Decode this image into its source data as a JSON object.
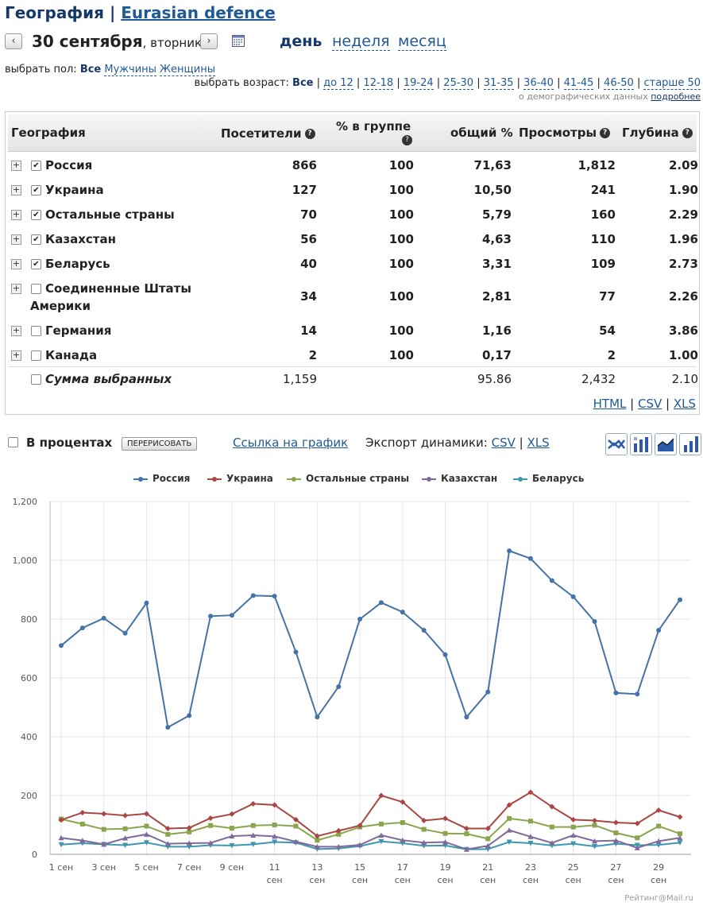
{
  "header": {
    "title": "География",
    "sep": "|",
    "site": "Eurasian defence"
  },
  "datebar": {
    "prev": "‹",
    "next": "›",
    "date": "30 сентября",
    "weekday": ", вторник",
    "periods": [
      "день",
      "неделя",
      "месяц"
    ]
  },
  "gender": {
    "label": "выбрать пол:",
    "options": [
      "Все",
      "Мужчины",
      "Женщины"
    ]
  },
  "age": {
    "label": "выбрать возраст:",
    "options": [
      "Все",
      "до 12",
      "12-18",
      "19-24",
      "25-30",
      "31-35",
      "36-40",
      "41-45",
      "46-50",
      "старше 50"
    ]
  },
  "demo": {
    "text": "о демографических данных",
    "link": "подробнее"
  },
  "table": {
    "headers": {
      "geo": "География",
      "visitors": "Посетители",
      "pct_group": "% в группе",
      "pct_total": "общий %",
      "views": "Просмотры",
      "depth": "Глубина"
    },
    "rows": [
      {
        "name": "Россия",
        "checked": true,
        "visitors": "866",
        "pct_group": "100",
        "pct_total": "71,63",
        "views": "1,812",
        "depth": "2.09"
      },
      {
        "name": "Украина",
        "checked": true,
        "visitors": "127",
        "pct_group": "100",
        "pct_total": "10,50",
        "views": "241",
        "depth": "1.90"
      },
      {
        "name": "Остальные страны",
        "checked": true,
        "visitors": "70",
        "pct_group": "100",
        "pct_total": "5,79",
        "views": "160",
        "depth": "2.29"
      },
      {
        "name": "Казахстан",
        "checked": true,
        "visitors": "56",
        "pct_group": "100",
        "pct_total": "4,63",
        "views": "110",
        "depth": "1.96"
      },
      {
        "name": "Беларусь",
        "checked": true,
        "visitors": "40",
        "pct_group": "100",
        "pct_total": "3,31",
        "views": "109",
        "depth": "2.73"
      },
      {
        "name": "Соединенные Штаты Америки",
        "checked": false,
        "visitors": "34",
        "pct_group": "100",
        "pct_total": "2,81",
        "views": "77",
        "depth": "2.26"
      },
      {
        "name": "Германия",
        "checked": false,
        "visitors": "14",
        "pct_group": "100",
        "pct_total": "1,16",
        "views": "54",
        "depth": "3.86"
      },
      {
        "name": "Канада",
        "checked": false,
        "visitors": "2",
        "pct_group": "100",
        "pct_total": "0,17",
        "views": "2",
        "depth": "1.00"
      }
    ],
    "summary": {
      "name": "Сумма выбранных",
      "visitors": "1,159",
      "pct_total": "95.86",
      "views": "2,432",
      "depth": "2.10"
    },
    "export": [
      "HTML",
      "CSV",
      "XLS"
    ]
  },
  "toolbar": {
    "percent_label": "В процентах",
    "redraw": "ПЕРЕРИСОВАТЬ",
    "chart_link": "Ссылка на график",
    "export_label": "Экспорт динамики:",
    "export_csv": "CSV",
    "export_xls": "XLS",
    "icons": [
      "line-cross-icon",
      "bar-value-icon",
      "area-chart-icon",
      "bar-chart-icon"
    ]
  },
  "chart_data": {
    "type": "line",
    "x": [
      1,
      2,
      3,
      4,
      5,
      6,
      7,
      8,
      9,
      10,
      11,
      12,
      13,
      14,
      15,
      16,
      17,
      18,
      19,
      20,
      21,
      22,
      23,
      24,
      25,
      26,
      27,
      28,
      29,
      30
    ],
    "x_tick_labels": [
      "1 сен",
      "3 сен",
      "5 сен",
      "7 сен",
      "9 сен",
      "11 сен",
      "13 сен",
      "15 сен",
      "17 сен",
      "19 сен",
      "21 сен",
      "23 сен",
      "25 сен",
      "27 сен",
      "29 сен"
    ],
    "ylim": [
      0,
      1200
    ],
    "y_ticks": [
      0,
      200,
      400,
      600,
      800,
      1000,
      1200
    ],
    "y_tick_labels": [
      "0",
      "200",
      "400",
      "600",
      "800",
      "1,000",
      "1,200"
    ],
    "grid": true,
    "legend": "top",
    "series": [
      {
        "name": "Россия",
        "color": "#4572a7",
        "marker": "circle",
        "values": [
          710,
          770,
          803,
          752,
          855,
          432,
          472,
          810,
          813,
          880,
          878,
          688,
          467,
          570,
          800,
          856,
          824,
          762,
          679,
          467,
          552,
          1032,
          1006,
          931,
          876,
          792,
          549,
          545,
          762,
          866
        ]
      },
      {
        "name": "Украина",
        "color": "#aa4643",
        "marker": "diamond",
        "values": [
          117,
          142,
          138,
          132,
          138,
          88,
          90,
          123,
          137,
          172,
          168,
          118,
          62,
          80,
          98,
          200,
          178,
          115,
          122,
          88,
          88,
          168,
          211,
          162,
          118,
          115,
          108,
          105,
          150,
          127
        ]
      },
      {
        "name": "Остальные страны",
        "color": "#89a54e",
        "marker": "square",
        "values": [
          120,
          103,
          85,
          87,
          96,
          68,
          76,
          98,
          89,
          98,
          100,
          96,
          48,
          68,
          93,
          103,
          108,
          85,
          71,
          70,
          53,
          122,
          113,
          93,
          93,
          99,
          73,
          56,
          96,
          70
        ]
      },
      {
        "name": "Казахстан",
        "color": "#80699b",
        "marker": "triangle",
        "values": [
          56,
          47,
          34,
          55,
          68,
          36,
          38,
          39,
          62,
          65,
          61,
          43,
          26,
          26,
          32,
          65,
          48,
          40,
          42,
          17,
          29,
          82,
          60,
          39,
          65,
          45,
          47,
          22,
          45,
          56
        ]
      },
      {
        "name": "Беларусь",
        "color": "#3d96ae",
        "marker": "triangle-down",
        "values": [
          33,
          38,
          34,
          31,
          40,
          26,
          26,
          31,
          30,
          34,
          42,
          40,
          18,
          20,
          28,
          44,
          38,
          29,
          30,
          17,
          18,
          42,
          38,
          30,
          36,
          27,
          36,
          31,
          32,
          40
        ]
      }
    ]
  },
  "credit": "Рейтинг@Mail.ru"
}
